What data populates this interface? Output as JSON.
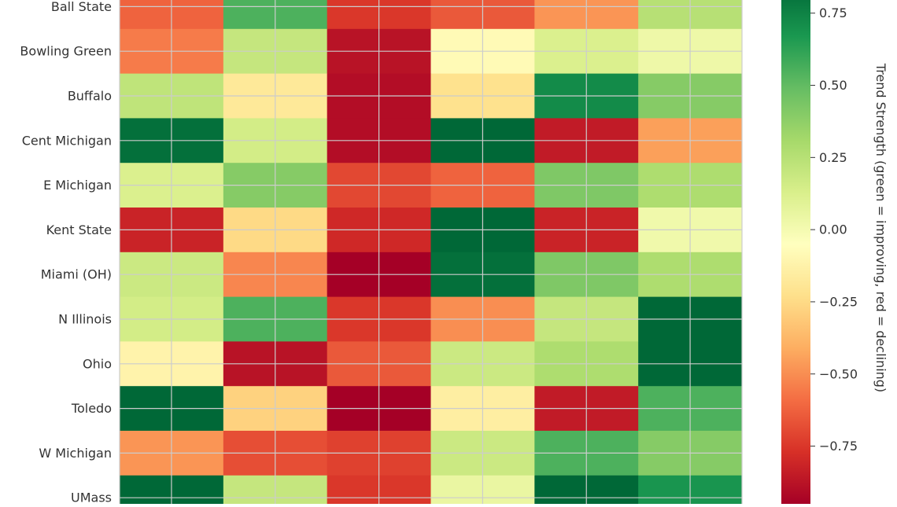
{
  "chart_data": {
    "type": "heatmap",
    "rows": [
      "Ball State",
      "Bowling Green",
      "Buffalo",
      "Cent Michigan",
      "E Michigan",
      "Kent State",
      "Miami (OH)",
      "N Illinois",
      "Ohio",
      "Toledo",
      "W Michigan",
      "UMass"
    ],
    "columns": [
      "",
      "",
      "",
      "",
      "",
      ""
    ],
    "values": [
      [
        -0.62,
        0.55,
        -0.75,
        -0.65,
        -0.48,
        0.25
      ],
      [
        -0.55,
        0.2,
        -0.88,
        -0.08,
        0.12,
        0.03
      ],
      [
        0.22,
        -0.18,
        -0.9,
        -0.22,
        0.72,
        0.4
      ],
      [
        0.82,
        0.15,
        -0.9,
        0.85,
        -0.85,
        -0.45
      ],
      [
        0.12,
        0.4,
        -0.7,
        -0.62,
        0.42,
        0.28
      ],
      [
        -0.82,
        -0.25,
        -0.8,
        0.95,
        -0.82,
        0.02
      ],
      [
        0.18,
        -0.52,
        -0.98,
        0.82,
        0.42,
        0.28
      ],
      [
        0.15,
        0.55,
        -0.75,
        -0.5,
        0.2,
        0.85
      ],
      [
        -0.12,
        -0.88,
        -0.65,
        0.18,
        0.28,
        0.85
      ],
      [
        0.88,
        -0.28,
        -0.98,
        -0.15,
        -0.85,
        0.55
      ],
      [
        -0.48,
        -0.68,
        -0.72,
        0.18,
        0.55,
        0.4
      ],
      [
        0.95,
        0.2,
        -0.75,
        0.05,
        0.95,
        0.68
      ]
    ],
    "colormap": "RdYlGn",
    "vmin": -0.95,
    "vmax": 0.85,
    "grid": true,
    "colorbar": {
      "label": "Trend Strength (green = improving, red = declining)",
      "ticks": [
        0.75,
        0.5,
        0.25,
        0.0,
        -0.25,
        -0.5,
        -0.75
      ],
      "tick_labels": [
        "0.75",
        "0.50",
        "0.25",
        "0.00",
        "−0.25",
        "−0.50",
        "−0.75"
      ]
    }
  }
}
